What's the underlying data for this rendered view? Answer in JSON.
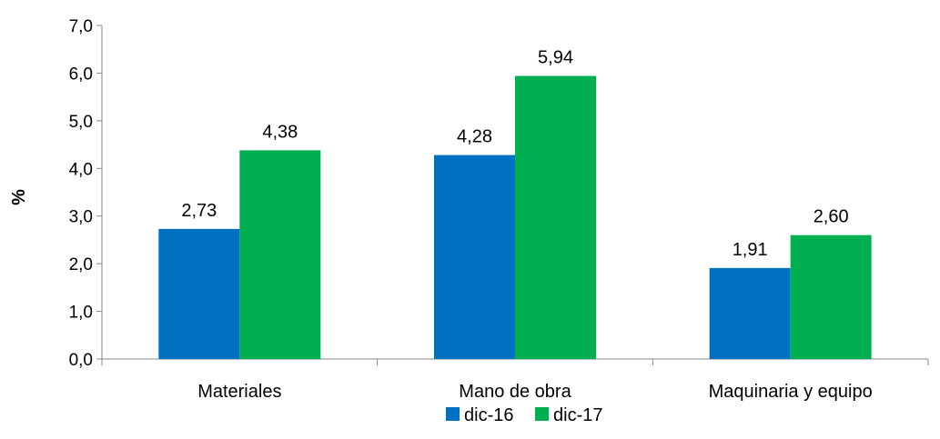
{
  "chart_data": {
    "type": "bar",
    "title": "",
    "xlabel": "",
    "ylabel": "%",
    "ylim": [
      0,
      7
    ],
    "yticks": [
      0,
      1,
      2,
      3,
      4,
      5,
      6,
      7
    ],
    "ytick_labels": [
      "0,0",
      "1,0",
      "2,0",
      "3,0",
      "4,0",
      "5,0",
      "6,0",
      "7,0"
    ],
    "grid": false,
    "legend_position": "bottom",
    "categories": [
      "Materiales",
      "Mano de obra",
      "Maquinaria y equipo"
    ],
    "series": [
      {
        "name": "dic-16",
        "color": "#0070C0",
        "values": [
          2.73,
          4.28,
          1.91
        ],
        "labels": [
          "2,73",
          "4,28",
          "1,91"
        ]
      },
      {
        "name": "dic-17",
        "color": "#00B050",
        "values": [
          4.38,
          5.94,
          2.6
        ],
        "labels": [
          "4,38",
          "5,94",
          "2,60"
        ]
      }
    ]
  }
}
